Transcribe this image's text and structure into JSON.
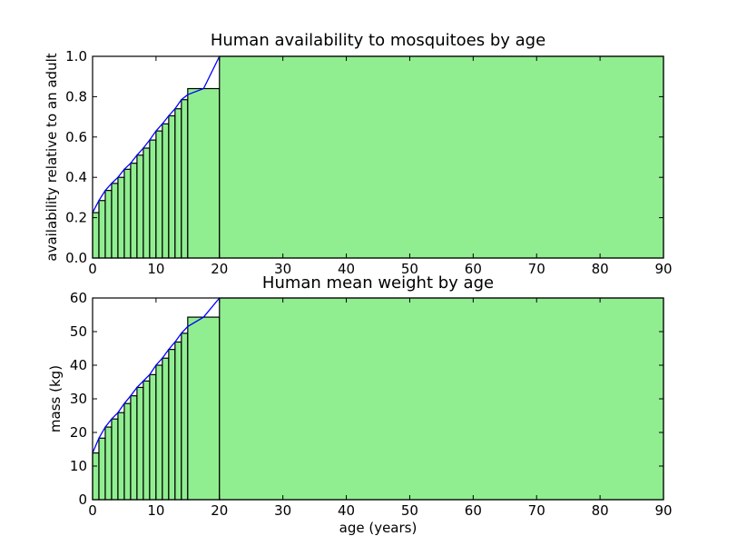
{
  "colors": {
    "bar_fill": "#90ee90",
    "bar_edge": "#000000",
    "line": "#0000ff"
  },
  "chart_data": [
    {
      "type": "bar",
      "title": "Human availability to mosquitoes by age",
      "xlabel": "",
      "ylabel": "availability relative to an adult",
      "xlim": [
        0,
        90
      ],
      "ylim": [
        0,
        1.0
      ],
      "xticks": [
        0,
        10,
        20,
        30,
        40,
        50,
        60,
        70,
        80,
        90
      ],
      "yticks": [
        0.0,
        0.2,
        0.4,
        0.6,
        0.8,
        1.0
      ],
      "ytick_labels": [
        "0.0",
        "0.2",
        "0.4",
        "0.6",
        "0.8",
        "1.0"
      ],
      "grid": false,
      "bins": [
        {
          "x0": 0,
          "x1": 1,
          "value": 0.225
        },
        {
          "x0": 1,
          "x1": 2,
          "value": 0.285
        },
        {
          "x0": 2,
          "x1": 3,
          "value": 0.335
        },
        {
          "x0": 3,
          "x1": 4,
          "value": 0.37
        },
        {
          "x0": 4,
          "x1": 5,
          "value": 0.4
        },
        {
          "x0": 5,
          "x1": 6,
          "value": 0.44
        },
        {
          "x0": 6,
          "x1": 7,
          "value": 0.47
        },
        {
          "x0": 7,
          "x1": 8,
          "value": 0.51
        },
        {
          "x0": 8,
          "x1": 9,
          "value": 0.545
        },
        {
          "x0": 9,
          "x1": 10,
          "value": 0.585
        },
        {
          "x0": 10,
          "x1": 11,
          "value": 0.63
        },
        {
          "x0": 11,
          "x1": 12,
          "value": 0.665
        },
        {
          "x0": 12,
          "x1": 13,
          "value": 0.705
        },
        {
          "x0": 13,
          "x1": 14,
          "value": 0.74
        },
        {
          "x0": 14,
          "x1": 15,
          "value": 0.785
        },
        {
          "x0": 15,
          "x1": 20,
          "value": 0.84
        },
        {
          "x0": 20,
          "x1": 90,
          "value": 1.0
        }
      ],
      "line": {
        "x": [
          0,
          1,
          2,
          3,
          4,
          5,
          6,
          7,
          8,
          9,
          10,
          11,
          12,
          13,
          14,
          15,
          17.5,
          20
        ],
        "y": [
          0.225,
          0.285,
          0.335,
          0.37,
          0.4,
          0.44,
          0.47,
          0.51,
          0.545,
          0.585,
          0.63,
          0.665,
          0.705,
          0.74,
          0.785,
          0.81,
          0.84,
          1.0
        ]
      }
    },
    {
      "type": "bar",
      "title": "Human mean weight by age",
      "xlabel": "age (years)",
      "ylabel": "mass (kg)",
      "xlim": [
        0,
        90
      ],
      "ylim": [
        0,
        60
      ],
      "xticks": [
        0,
        10,
        20,
        30,
        40,
        50,
        60,
        70,
        80,
        90
      ],
      "yticks": [
        0,
        10,
        20,
        30,
        40,
        50,
        60
      ],
      "ytick_labels": [
        "0",
        "10",
        "20",
        "30",
        "40",
        "50",
        "60"
      ],
      "grid": false,
      "bins": [
        {
          "x0": 0,
          "x1": 1,
          "value": 13.9
        },
        {
          "x0": 1,
          "x1": 2,
          "value": 18.3
        },
        {
          "x0": 2,
          "x1": 3,
          "value": 21.6
        },
        {
          "x0": 3,
          "x1": 4,
          "value": 24.0
        },
        {
          "x0": 4,
          "x1": 5,
          "value": 25.9
        },
        {
          "x0": 5,
          "x1": 6,
          "value": 28.6
        },
        {
          "x0": 6,
          "x1": 7,
          "value": 30.9
        },
        {
          "x0": 7,
          "x1": 8,
          "value": 33.4
        },
        {
          "x0": 8,
          "x1": 9,
          "value": 35.3
        },
        {
          "x0": 9,
          "x1": 10,
          "value": 37.2
        },
        {
          "x0": 10,
          "x1": 11,
          "value": 40.0
        },
        {
          "x0": 11,
          "x1": 12,
          "value": 42.1
        },
        {
          "x0": 12,
          "x1": 13,
          "value": 44.7
        },
        {
          "x0": 13,
          "x1": 14,
          "value": 46.9
        },
        {
          "x0": 14,
          "x1": 15,
          "value": 49.5
        },
        {
          "x0": 15,
          "x1": 20,
          "value": 54.3
        },
        {
          "x0": 20,
          "x1": 90,
          "value": 60.0
        }
      ],
      "line": {
        "x": [
          0,
          1,
          2,
          3,
          4,
          5,
          6,
          7,
          8,
          9,
          10,
          11,
          12,
          13,
          14,
          15,
          17.5,
          20
        ],
        "y": [
          13.9,
          18.3,
          21.6,
          24.0,
          25.9,
          28.6,
          30.9,
          33.4,
          35.3,
          37.2,
          40.0,
          42.1,
          44.7,
          46.9,
          49.5,
          51.5,
          54.3,
          60.0
        ]
      }
    }
  ]
}
